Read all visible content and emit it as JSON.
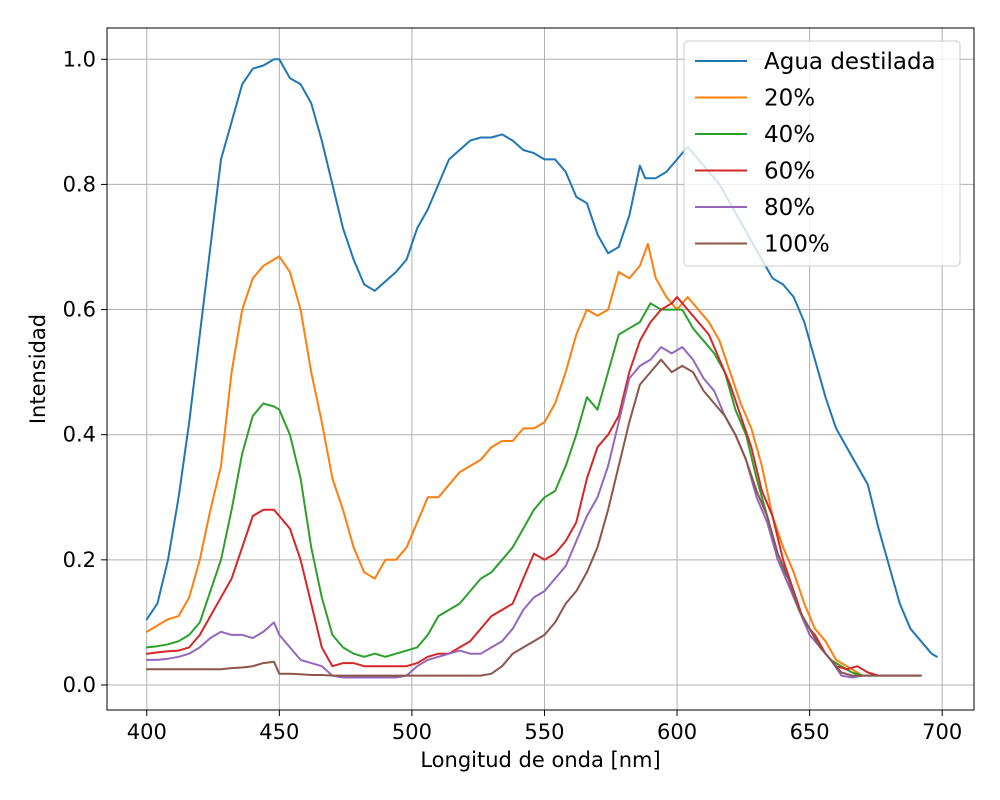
{
  "chart_data": {
    "type": "line",
    "xlabel": "Longitud de onda [nm]",
    "ylabel": "Intensidad",
    "xlim": [
      385,
      712
    ],
    "ylim": [
      -0.04,
      1.05
    ],
    "xticks": [
      400,
      450,
      500,
      550,
      600,
      650,
      700
    ],
    "yticks": [
      0.0,
      0.2,
      0.4,
      0.6,
      0.8,
      1.0
    ],
    "xtick_labels": [
      "400",
      "450",
      "500",
      "550",
      "600",
      "650",
      "700"
    ],
    "ytick_labels": [
      "0.0",
      "0.2",
      "0.4",
      "0.6",
      "0.8",
      "1.0"
    ],
    "grid": true,
    "legend_position": "top-right",
    "series": [
      {
        "name": "Agua destilada",
        "color": "#1f77b4",
        "x": [
          400,
          404,
          408,
          412,
          416,
          420,
          424,
          428,
          432,
          436,
          440,
          444,
          448,
          450,
          454,
          458,
          462,
          466,
          470,
          474,
          478,
          482,
          486,
          490,
          494,
          498,
          502,
          506,
          510,
          514,
          518,
          522,
          526,
          530,
          534,
          538,
          542,
          546,
          550,
          554,
          558,
          562,
          566,
          570,
          574,
          578,
          582,
          586,
          588,
          592,
          596,
          600,
          604,
          608,
          612,
          616,
          620,
          624,
          628,
          632,
          636,
          640,
          644,
          648,
          652,
          656,
          660,
          664,
          668,
          672,
          676,
          680,
          684,
          688,
          692,
          696,
          698
        ],
        "y": [
          0.105,
          0.13,
          0.2,
          0.3,
          0.42,
          0.56,
          0.7,
          0.84,
          0.9,
          0.96,
          0.985,
          0.99,
          1.0,
          1.0,
          0.97,
          0.96,
          0.93,
          0.87,
          0.8,
          0.73,
          0.68,
          0.64,
          0.63,
          0.645,
          0.66,
          0.68,
          0.73,
          0.76,
          0.8,
          0.84,
          0.855,
          0.87,
          0.875,
          0.875,
          0.88,
          0.87,
          0.855,
          0.85,
          0.84,
          0.84,
          0.82,
          0.78,
          0.77,
          0.72,
          0.69,
          0.7,
          0.75,
          0.83,
          0.81,
          0.81,
          0.82,
          0.84,
          0.86,
          0.84,
          0.82,
          0.8,
          0.77,
          0.74,
          0.71,
          0.68,
          0.65,
          0.64,
          0.62,
          0.58,
          0.52,
          0.46,
          0.41,
          0.38,
          0.35,
          0.32,
          0.25,
          0.19,
          0.13,
          0.09,
          0.07,
          0.05,
          0.045
        ]
      },
      {
        "name": "20%",
        "color": "#ff7f0e",
        "x": [
          400,
          404,
          408,
          412,
          416,
          420,
          424,
          428,
          432,
          436,
          440,
          444,
          448,
          450,
          454,
          458,
          462,
          466,
          470,
          474,
          478,
          482,
          486,
          490,
          494,
          498,
          502,
          506,
          510,
          514,
          518,
          522,
          526,
          530,
          534,
          538,
          542,
          546,
          550,
          554,
          558,
          562,
          566,
          570,
          574,
          578,
          582,
          586,
          589,
          592,
          596,
          600,
          604,
          608,
          612,
          616,
          620,
          624,
          628,
          632,
          636,
          640,
          644,
          648,
          652,
          656,
          660,
          664,
          670
        ],
        "y": [
          0.085,
          0.095,
          0.105,
          0.11,
          0.14,
          0.2,
          0.28,
          0.35,
          0.5,
          0.6,
          0.65,
          0.67,
          0.68,
          0.685,
          0.66,
          0.6,
          0.5,
          0.42,
          0.33,
          0.28,
          0.22,
          0.18,
          0.17,
          0.2,
          0.2,
          0.22,
          0.26,
          0.3,
          0.3,
          0.32,
          0.34,
          0.35,
          0.36,
          0.38,
          0.39,
          0.39,
          0.41,
          0.41,
          0.42,
          0.45,
          0.5,
          0.56,
          0.6,
          0.59,
          0.6,
          0.66,
          0.65,
          0.67,
          0.705,
          0.65,
          0.62,
          0.6,
          0.62,
          0.6,
          0.58,
          0.55,
          0.5,
          0.45,
          0.41,
          0.35,
          0.27,
          0.22,
          0.18,
          0.13,
          0.09,
          0.07,
          0.04,
          0.03,
          0.015
        ]
      },
      {
        "name": "40%",
        "color": "#2ca02c",
        "x": [
          400,
          404,
          408,
          412,
          416,
          420,
          424,
          428,
          432,
          436,
          440,
          444,
          448,
          450,
          454,
          458,
          462,
          466,
          470,
          474,
          478,
          482,
          486,
          490,
          494,
          498,
          502,
          506,
          510,
          514,
          518,
          522,
          526,
          530,
          534,
          538,
          542,
          546,
          550,
          554,
          558,
          562,
          566,
          570,
          574,
          578,
          582,
          586,
          590,
          594,
          598,
          602,
          606,
          610,
          614,
          618,
          622,
          626,
          630,
          634,
          638,
          642,
          646,
          650,
          654,
          658,
          662,
          666,
          670
        ],
        "y": [
          0.06,
          0.062,
          0.065,
          0.07,
          0.08,
          0.1,
          0.15,
          0.2,
          0.28,
          0.37,
          0.43,
          0.45,
          0.445,
          0.44,
          0.4,
          0.33,
          0.22,
          0.14,
          0.08,
          0.06,
          0.05,
          0.045,
          0.05,
          0.045,
          0.05,
          0.055,
          0.06,
          0.08,
          0.11,
          0.12,
          0.13,
          0.15,
          0.17,
          0.18,
          0.2,
          0.22,
          0.25,
          0.28,
          0.3,
          0.31,
          0.35,
          0.4,
          0.46,
          0.44,
          0.5,
          0.56,
          0.57,
          0.58,
          0.61,
          0.6,
          0.6,
          0.6,
          0.57,
          0.55,
          0.53,
          0.5,
          0.44,
          0.4,
          0.33,
          0.27,
          0.2,
          0.17,
          0.12,
          0.09,
          0.06,
          0.04,
          0.03,
          0.02,
          0.015
        ]
      },
      {
        "name": "60%",
        "color": "#d62728",
        "x": [
          400,
          404,
          408,
          412,
          416,
          420,
          424,
          428,
          432,
          436,
          440,
          444,
          448,
          450,
          454,
          458,
          462,
          466,
          470,
          474,
          478,
          482,
          486,
          490,
          494,
          498,
          502,
          506,
          510,
          514,
          518,
          522,
          526,
          530,
          534,
          538,
          542,
          546,
          550,
          554,
          558,
          562,
          566,
          570,
          574,
          578,
          582,
          586,
          590,
          594,
          598,
          600,
          604,
          608,
          612,
          616,
          620,
          624,
          628,
          632,
          636,
          640,
          644,
          648,
          652,
          656,
          660,
          664,
          668,
          672,
          676
        ],
        "y": [
          0.05,
          0.052,
          0.054,
          0.055,
          0.06,
          0.08,
          0.11,
          0.14,
          0.17,
          0.22,
          0.27,
          0.28,
          0.28,
          0.27,
          0.25,
          0.2,
          0.13,
          0.06,
          0.03,
          0.035,
          0.035,
          0.03,
          0.03,
          0.03,
          0.03,
          0.03,
          0.035,
          0.045,
          0.05,
          0.05,
          0.06,
          0.07,
          0.09,
          0.11,
          0.12,
          0.13,
          0.17,
          0.21,
          0.2,
          0.21,
          0.23,
          0.26,
          0.33,
          0.38,
          0.4,
          0.43,
          0.5,
          0.55,
          0.58,
          0.6,
          0.61,
          0.62,
          0.6,
          0.58,
          0.56,
          0.52,
          0.48,
          0.43,
          0.38,
          0.31,
          0.27,
          0.2,
          0.15,
          0.1,
          0.08,
          0.05,
          0.03,
          0.025,
          0.03,
          0.02,
          0.015
        ]
      },
      {
        "name": "80%",
        "color": "#9467bd",
        "x": [
          400,
          404,
          408,
          412,
          416,
          420,
          424,
          428,
          432,
          436,
          440,
          444,
          448,
          450,
          454,
          458,
          462,
          466,
          470,
          474,
          478,
          482,
          486,
          490,
          494,
          498,
          502,
          506,
          510,
          514,
          518,
          522,
          526,
          530,
          534,
          538,
          542,
          546,
          550,
          554,
          558,
          562,
          566,
          570,
          574,
          578,
          582,
          586,
          590,
          594,
          598,
          602,
          606,
          610,
          614,
          618,
          622,
          626,
          630,
          634,
          638,
          642,
          646,
          650,
          654,
          658,
          662,
          666,
          670,
          676,
          692
        ],
        "y": [
          0.04,
          0.04,
          0.042,
          0.045,
          0.05,
          0.06,
          0.075,
          0.085,
          0.08,
          0.08,
          0.075,
          0.085,
          0.1,
          0.08,
          0.06,
          0.04,
          0.035,
          0.03,
          0.015,
          0.012,
          0.012,
          0.012,
          0.012,
          0.012,
          0.012,
          0.015,
          0.03,
          0.04,
          0.045,
          0.05,
          0.055,
          0.05,
          0.05,
          0.06,
          0.07,
          0.09,
          0.12,
          0.14,
          0.15,
          0.17,
          0.19,
          0.23,
          0.27,
          0.3,
          0.35,
          0.42,
          0.49,
          0.51,
          0.52,
          0.54,
          0.53,
          0.54,
          0.52,
          0.49,
          0.47,
          0.43,
          0.4,
          0.36,
          0.3,
          0.26,
          0.2,
          0.16,
          0.12,
          0.08,
          0.06,
          0.04,
          0.015,
          0.012,
          0.015,
          0.015,
          0.015
        ]
      },
      {
        "name": "100%",
        "color": "#8c564b",
        "x": [
          400,
          404,
          408,
          412,
          416,
          420,
          424,
          428,
          432,
          436,
          440,
          444,
          448,
          450,
          454,
          458,
          462,
          466,
          470,
          474,
          478,
          482,
          486,
          490,
          494,
          498,
          502,
          506,
          510,
          514,
          518,
          522,
          526,
          530,
          534,
          538,
          542,
          546,
          550,
          554,
          558,
          562,
          566,
          570,
          574,
          578,
          582,
          586,
          590,
          594,
          598,
          602,
          606,
          610,
          614,
          618,
          622,
          626,
          630,
          634,
          638,
          642,
          646,
          650,
          654,
          658,
          662,
          666,
          670,
          676,
          692
        ],
        "y": [
          0.025,
          0.025,
          0.025,
          0.025,
          0.025,
          0.025,
          0.025,
          0.025,
          0.027,
          0.028,
          0.03,
          0.035,
          0.037,
          0.018,
          0.018,
          0.017,
          0.016,
          0.016,
          0.015,
          0.015,
          0.015,
          0.015,
          0.015,
          0.015,
          0.015,
          0.015,
          0.015,
          0.015,
          0.015,
          0.015,
          0.015,
          0.015,
          0.015,
          0.018,
          0.03,
          0.05,
          0.06,
          0.07,
          0.08,
          0.1,
          0.13,
          0.15,
          0.18,
          0.22,
          0.28,
          0.35,
          0.42,
          0.48,
          0.5,
          0.52,
          0.5,
          0.51,
          0.5,
          0.47,
          0.45,
          0.43,
          0.4,
          0.36,
          0.31,
          0.27,
          0.21,
          0.17,
          0.12,
          0.09,
          0.06,
          0.04,
          0.02,
          0.015,
          0.015,
          0.015,
          0.015
        ]
      }
    ]
  }
}
